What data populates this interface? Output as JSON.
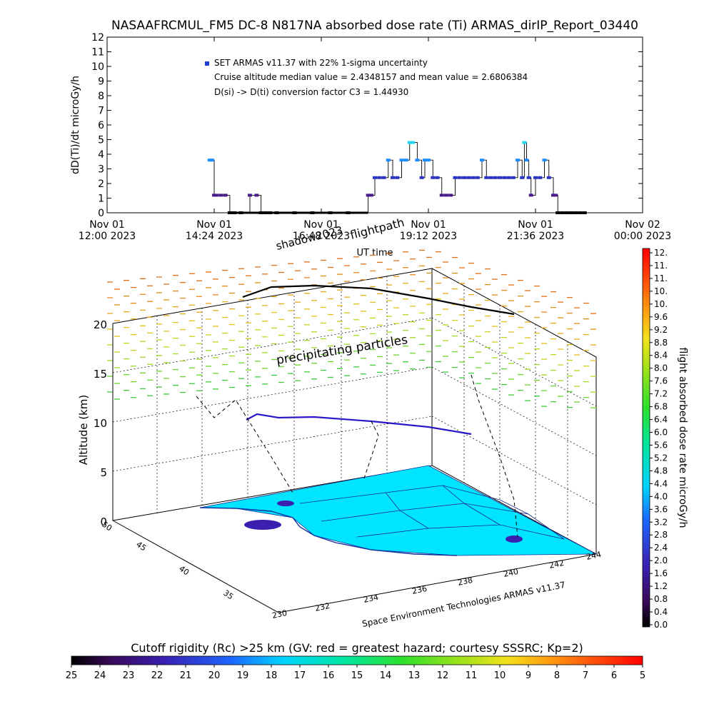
{
  "title": "NASAAFRCMUL_FM5 DC-8   N817NA absorbed dose rate (Ti) ARMAS_dirIP_Report_03440",
  "chart_data": [
    {
      "type": "scatter",
      "ylabel": "dD(Ti)/dt microGy/h",
      "xlabel": "UT time",
      "ylim": [
        0,
        12
      ],
      "yticks": [
        "0",
        "1",
        "2",
        "3",
        "4",
        "5",
        "6",
        "7",
        "8",
        "9",
        "10",
        "11",
        "12"
      ],
      "xticks": [
        {
          "line1": "Nov 01",
          "line2": "12:00 2023"
        },
        {
          "line1": "Nov 01",
          "line2": "14:24 2023"
        },
        {
          "line1": "Nov 01",
          "line2": "16:48 2023"
        },
        {
          "line1": "Nov 01",
          "line2": "19:12 2023"
        },
        {
          "line1": "Nov 01",
          "line2": "21:36 2023"
        },
        {
          "line1": "Nov 02",
          "line2": "00:00 2023"
        }
      ],
      "xrange_hours": [
        12.0,
        24.0
      ],
      "legend_marker_color": "#1f3fd6",
      "legend": [
        "SET ARMAS v11.37 with 22% 1-sigma uncertainty",
        "Cruise altitude median value = 2.4348157 and mean value = 2.6806384",
        "D(si) -> D(ti) conversion factor C3 = 1.44930"
      ],
      "series": [
        {
          "x": [
            14.3,
            14.35,
            14.4,
            14.45,
            14.55,
            14.65,
            14.75,
            14.85,
            15.0,
            15.2,
            15.35,
            15.45,
            15.55,
            15.65,
            15.8,
            16.2,
            16.6,
            17.0,
            17.4,
            17.85,
            17.92,
            18.0,
            18.1,
            18.2,
            18.3,
            18.4,
            18.5,
            18.6,
            18.7,
            18.78,
            18.85,
            18.95,
            19.05,
            19.12,
            19.2,
            19.3,
            19.4,
            19.5,
            19.6,
            19.7,
            19.8,
            19.9,
            20.0,
            20.1,
            20.2,
            20.3,
            20.4,
            20.5,
            20.6,
            20.7,
            20.8,
            20.9,
            21.0,
            21.1,
            21.2,
            21.3,
            21.35,
            21.4,
            21.45,
            21.5,
            21.6,
            21.7,
            21.8,
            21.9,
            22.0,
            22.05,
            22.1,
            22.2,
            22.3,
            22.4,
            22.5,
            22.6,
            22.7
          ],
          "y": [
            3.6,
            3.6,
            1.2,
            1.2,
            1.2,
            1.2,
            0,
            0,
            0,
            1.2,
            1.2,
            0,
            0,
            0,
            0,
            0,
            0,
            0,
            0,
            1.2,
            1.2,
            2.4,
            2.4,
            2.4,
            3.6,
            2.4,
            2.4,
            3.6,
            3.6,
            4.8,
            4.8,
            3.6,
            2.4,
            3.6,
            3.6,
            2.4,
            2.4,
            1.2,
            1.2,
            1.2,
            2.4,
            2.4,
            2.4,
            2.4,
            2.4,
            2.4,
            3.6,
            2.4,
            2.4,
            2.4,
            2.4,
            2.4,
            2.4,
            2.4,
            3.6,
            2.4,
            4.8,
            3.6,
            2.4,
            1.2,
            2.4,
            2.4,
            3.6,
            2.4,
            1.2,
            1.2,
            0,
            0,
            0,
            0,
            0,
            0,
            0
          ]
        }
      ]
    },
    {
      "type": "3d-surface",
      "zlabel": "Altitude (km)",
      "zticks": [
        "0",
        "5",
        "10",
        "15",
        "20"
      ],
      "lat_ticks": [
        "50",
        "45",
        "40",
        "35"
      ],
      "lon_ticks": [
        "230",
        "232",
        "234",
        "236",
        "238",
        "240",
        "242",
        "244"
      ],
      "annotations": [
        "shadow2023",
        "flightpath",
        "precipitating particles"
      ],
      "credit": "Space Environment Technologies ARMAS v11.37"
    }
  ],
  "dose_colorbar": {
    "label": "flight absorbed dose rate microGy/h",
    "ticks": [
      "12.",
      "11.",
      "11.",
      "10.",
      "10.",
      "9.6",
      "9.2",
      "8.8",
      "8.4",
      "8.0",
      "7.6",
      "7.2",
      "6.8",
      "6.4",
      "6.0",
      "5.6",
      "5.2",
      "4.8",
      "4.4",
      "4.0",
      "3.6",
      "3.2",
      "2.8",
      "2.4",
      "2.0",
      "1.6",
      "1.2",
      "0.8",
      "0.4",
      "0.0"
    ]
  },
  "rigidity_colorbar": {
    "label": "Cutoff rigidity (Rc) >25 km (GV: red = greatest hazard; courtesy SSSRC; Kp=2)",
    "ticks": [
      "25",
      "24",
      "23",
      "22",
      "21",
      "20",
      "19",
      "18",
      "17",
      "16",
      "15",
      "14",
      "13",
      "12",
      "11",
      "10",
      "9",
      "8",
      "7",
      "6",
      "5"
    ]
  },
  "colors": {
    "ocean": "#00e5ff",
    "trace": "#000000",
    "series": "#2a34c8"
  }
}
